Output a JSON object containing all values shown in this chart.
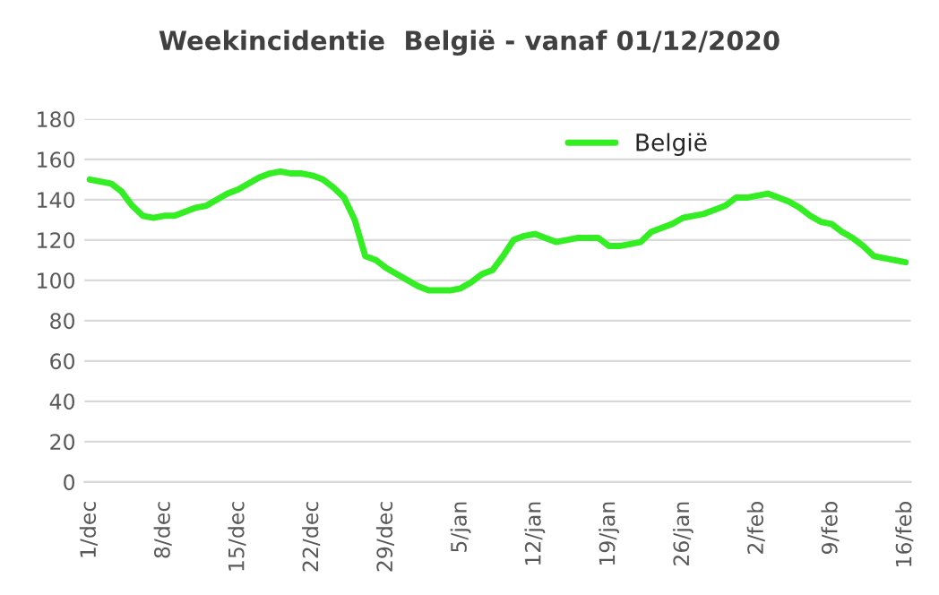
{
  "chart_data": {
    "type": "line",
    "title": "Weekincidentie  België - vanaf 01/12/2020",
    "categories": [
      "1/dec",
      null,
      null,
      null,
      null,
      null,
      null,
      "8/dec",
      null,
      null,
      null,
      null,
      null,
      null,
      "15/dec",
      null,
      null,
      null,
      null,
      null,
      null,
      "22/dec",
      null,
      null,
      null,
      null,
      null,
      null,
      "29/dec",
      null,
      null,
      null,
      null,
      null,
      null,
      "5/jan",
      null,
      null,
      null,
      null,
      null,
      null,
      "12/jan",
      null,
      null,
      null,
      null,
      null,
      null,
      "19/jan",
      null,
      null,
      null,
      null,
      null,
      null,
      "26/jan",
      null,
      null,
      null,
      null,
      null,
      null,
      "2/feb",
      null,
      null,
      null,
      null,
      null,
      null,
      "9/feb",
      null,
      null,
      null,
      null,
      null,
      null,
      "16/feb"
    ],
    "series": [
      {
        "name": "België",
        "color": "#33ee22",
        "values": [
          150,
          149,
          148,
          144,
          137,
          132,
          131,
          132,
          132,
          134,
          136,
          137,
          140,
          143,
          145,
          148,
          151,
          153,
          154,
          153,
          153,
          152,
          150,
          146,
          141,
          130,
          112,
          110,
          106,
          103,
          100,
          97,
          95,
          95,
          95,
          96,
          99,
          103,
          105,
          112,
          120,
          122,
          123,
          121,
          119,
          120,
          121,
          121,
          121,
          117,
          117,
          118,
          119,
          124,
          126,
          128,
          131,
          132,
          133,
          135,
          137,
          141,
          141,
          142,
          143,
          141,
          139,
          136,
          132,
          129,
          128,
          124,
          121,
          117,
          112,
          111,
          110,
          109
        ]
      }
    ],
    "ylim": [
      0,
      180
    ],
    "yticks": [
      0,
      20,
      40,
      60,
      80,
      100,
      120,
      140,
      160,
      180
    ],
    "grid": "y",
    "legend": "top right",
    "marker": "none",
    "line_style": "solid"
  }
}
